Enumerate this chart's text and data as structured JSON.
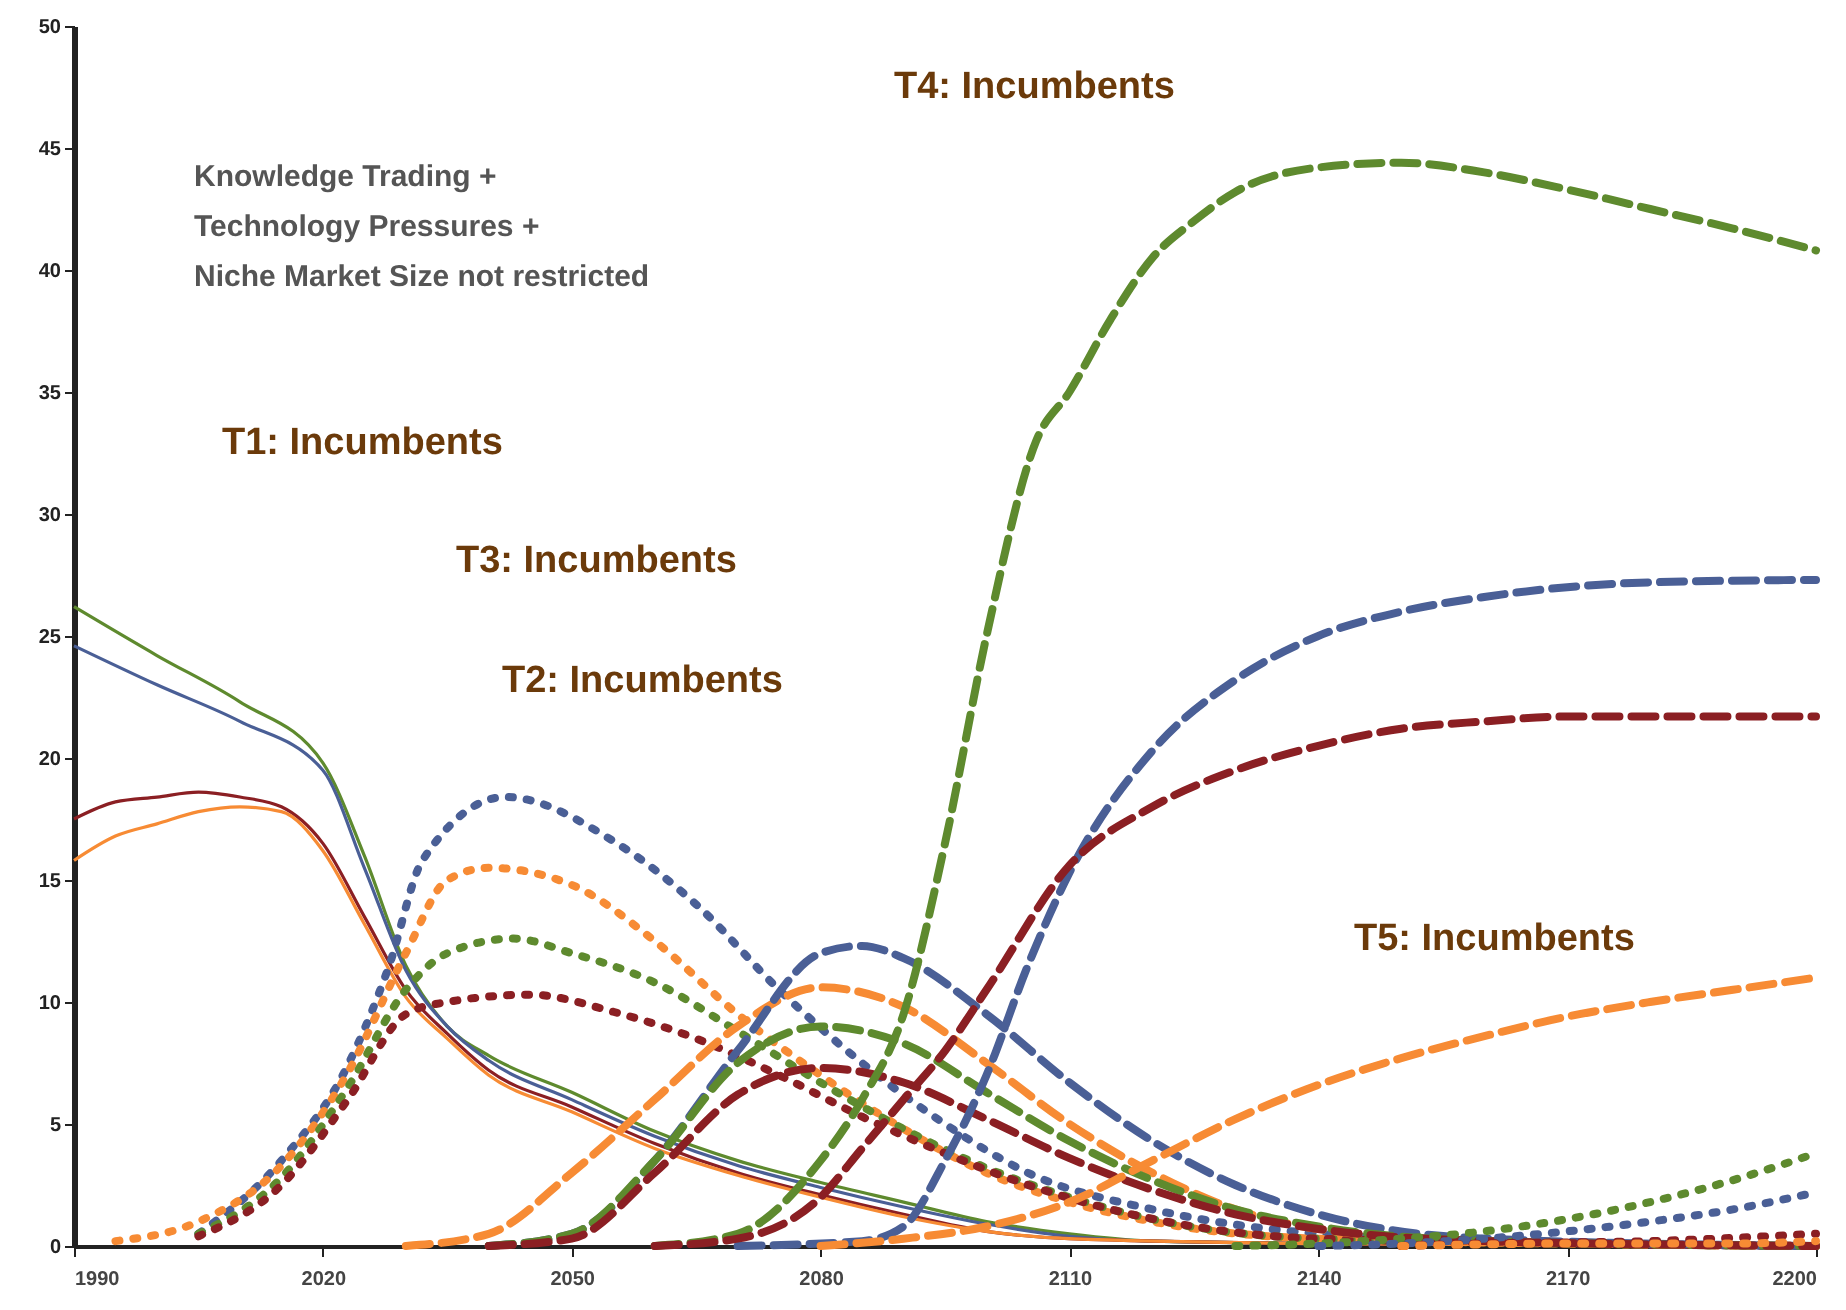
{
  "chart_data": {
    "type": "line",
    "xlim": [
      1990,
      2200
    ],
    "xticks": [
      1990,
      2020,
      2050,
      2080,
      2110,
      2140,
      2170,
      2200
    ],
    "ylim": [
      0,
      50
    ],
    "yticks": [
      0,
      5,
      10,
      15,
      20,
      25,
      30,
      35,
      40,
      45,
      50
    ],
    "grid": false,
    "annotations": [
      "Knowledge Trading +",
      "Technology Pressures +",
      "Niche Market Size not restricted",
      "T1: Incumbents",
      "T3: Incumbents",
      "T2: Incumbents",
      "T4: Incumbents",
      "T5: Incumbents"
    ],
    "series": [
      {
        "color": "#5e8a2e",
        "line_style": "solid",
        "x": [
          1990,
          2000,
          2010,
          2020,
          2025,
          2030,
          2035,
          2040,
          2050,
          2060,
          2070,
          2080,
          2090,
          2100,
          2110,
          2120,
          2140,
          2200
        ],
        "values": [
          26.2,
          24.2,
          22.3,
          19.8,
          16,
          11.5,
          9,
          7.8,
          6.3,
          4.7,
          3.5,
          2.6,
          1.8,
          1.0,
          0.5,
          0.2,
          0.1,
          0
        ]
      },
      {
        "color": "#4a5f96",
        "line_style": "solid",
        "x": [
          1990,
          2000,
          2010,
          2020,
          2025,
          2030,
          2035,
          2040,
          2050,
          2060,
          2070,
          2080,
          2090,
          2100,
          2110,
          2120,
          2140,
          2200
        ],
        "values": [
          24.6,
          23,
          21.5,
          19.5,
          15.5,
          11.3,
          9,
          7.6,
          6,
          4.5,
          3.3,
          2.4,
          1.6,
          0.9,
          0.4,
          0.2,
          0.1,
          0
        ]
      },
      {
        "color": "#8b1f23",
        "line_style": "solid",
        "x": [
          1990,
          1995,
          2000,
          2005,
          2010,
          2015,
          2020,
          2025,
          2030,
          2035,
          2040,
          2050,
          2060,
          2070,
          2080,
          2090,
          2100,
          2110,
          2140,
          2200
        ],
        "values": [
          17.5,
          18.2,
          18.4,
          18.6,
          18.4,
          18,
          16.5,
          13.5,
          10.5,
          8.7,
          7.2,
          5.7,
          4.2,
          3.0,
          2.1,
          1.3,
          0.6,
          0.3,
          0.1,
          0
        ]
      },
      {
        "color": "#f78b34",
        "line_style": "solid",
        "x": [
          1990,
          1995,
          2000,
          2005,
          2010,
          2015,
          2020,
          2025,
          2030,
          2035,
          2040,
          2050,
          2060,
          2070,
          2080,
          2090,
          2100,
          2110,
          2140,
          2200
        ],
        "values": [
          15.8,
          16.8,
          17.3,
          17.8,
          18,
          17.8,
          16.2,
          13.2,
          10.2,
          8.5,
          7,
          5.5,
          4.0,
          2.9,
          2.0,
          1.2,
          0.6,
          0.3,
          0.1,
          0
        ]
      },
      {
        "color": "#4a5f96",
        "line_style": "dotted",
        "x": [
          2005,
          2015,
          2023,
          2028,
          2032,
          2042,
          2055,
          2065,
          2075,
          2085,
          2095,
          2105,
          2120,
          2140,
          2160,
          2200
        ],
        "values": [
          0.5,
          3.5,
          7.4,
          11.5,
          15.8,
          18.4,
          16.6,
          14,
          10.5,
          7.5,
          5,
          3,
          1.5,
          0.5,
          0.2,
          0
        ]
      },
      {
        "color": "#f78b34",
        "line_style": "dotted",
        "x": [
          1995,
          2005,
          2015,
          2023,
          2030,
          2035,
          2040,
          2050,
          2060,
          2070,
          2080,
          2090,
          2100,
          2110,
          2120,
          2140,
          2200
        ],
        "values": [
          0.2,
          1,
          3.3,
          7.1,
          12,
          15,
          15.5,
          14.8,
          12.5,
          9.5,
          7,
          4.8,
          3,
          1.8,
          1,
          0.3,
          0
        ]
      },
      {
        "color": "#5e8a2e",
        "line_style": "dotted",
        "x": [
          2005,
          2015,
          2023,
          2030,
          2035,
          2043,
          2050,
          2060,
          2070,
          2080,
          2090,
          2100,
          2110,
          2120,
          2140,
          2200
        ],
        "values": [
          0.5,
          2.8,
          6.5,
          10.5,
          12,
          12.6,
          12,
          10.8,
          8.8,
          6.7,
          4.8,
          3.2,
          2,
          1.1,
          0.3,
          0
        ]
      },
      {
        "color": "#8b1f23",
        "line_style": "dotted",
        "x": [
          2005,
          2015,
          2023,
          2030,
          2035,
          2045,
          2055,
          2065,
          2075,
          2085,
          2095,
          2105,
          2115,
          2125,
          2140,
          2200
        ],
        "values": [
          0.4,
          2.5,
          6,
          9.5,
          10,
          10.3,
          9.6,
          8.5,
          7,
          5.3,
          3.8,
          2.5,
          1.5,
          0.8,
          0.3,
          0
        ]
      },
      {
        "color": "#f78b34",
        "line_style": "dashed",
        "x": [
          2030,
          2040,
          2050,
          2060,
          2070,
          2080,
          2090,
          2100,
          2110,
          2120,
          2130,
          2140,
          2160,
          2200
        ],
        "values": [
          0,
          0.5,
          3,
          6,
          9,
          10.6,
          9.8,
          7.5,
          5,
          3,
          1.5,
          0.7,
          0.2,
          0
        ]
      },
      {
        "color": "#4a5f96",
        "line_style": "dashed",
        "x": [
          2040,
          2050,
          2060,
          2070,
          2080,
          2085,
          2090,
          2100,
          2110,
          2120,
          2130,
          2140,
          2160,
          2200
        ],
        "values": [
          0,
          0.5,
          3.5,
          8,
          12,
          12.3,
          11.8,
          9.5,
          6.7,
          4.3,
          2.5,
          1.3,
          0.3,
          0
        ]
      },
      {
        "color": "#5e8a2e",
        "line_style": "dashed",
        "x": [
          2040,
          2050,
          2060,
          2070,
          2080,
          2090,
          2100,
          2110,
          2120,
          2130,
          2140,
          2160,
          2200
        ],
        "values": [
          0,
          0.5,
          3.5,
          7.5,
          9,
          8.3,
          6.3,
          4.3,
          2.7,
          1.5,
          0.8,
          0.2,
          0
        ]
      },
      {
        "color": "#8b1f23",
        "line_style": "dashed",
        "x": [
          2040,
          2050,
          2060,
          2070,
          2080,
          2090,
          2100,
          2110,
          2120,
          2130,
          2140,
          2160,
          2200
        ],
        "values": [
          0,
          0.3,
          3,
          6.2,
          7.3,
          6.7,
          5.2,
          3.6,
          2.3,
          1.3,
          0.7,
          0.2,
          0
        ]
      },
      {
        "color": "#5e8a2e",
        "line_style": "dashed",
        "x": [
          2060,
          2070,
          2080,
          2085,
          2090,
          2095,
          2100,
          2106,
          2110,
          2115,
          2120,
          2125,
          2130,
          2140,
          2150,
          2160,
          2170,
          2180,
          2190,
          2200
        ],
        "values": [
          0,
          0.5,
          3.5,
          6,
          9.5,
          16.5,
          25,
          33,
          35,
          38,
          40.5,
          42,
          43.2,
          44.2,
          44.4,
          44,
          43.3,
          42.5,
          41.7,
          40.8
        ]
      },
      {
        "color": "#4a5f96",
        "line_style": "dashed",
        "x": [
          2070,
          2085,
          2090,
          2095,
          2100,
          2105,
          2110,
          2120,
          2130,
          2140,
          2150,
          2160,
          2170,
          2180,
          2200
        ],
        "values": [
          0,
          0.2,
          0.8,
          3.5,
          7,
          11.5,
          15.3,
          20.3,
          23.2,
          25,
          26,
          26.6,
          27,
          27.2,
          27.3
        ]
      },
      {
        "color": "#8b1f23",
        "line_style": "dashed",
        "x": [
          2060,
          2070,
          2080,
          2085,
          2090,
          2095,
          2100,
          2110,
          2120,
          2130,
          2140,
          2150,
          2160,
          2170,
          2200
        ],
        "values": [
          0,
          0.3,
          2,
          4,
          6,
          8,
          10.5,
          15.6,
          18,
          19.5,
          20.5,
          21.2,
          21.5,
          21.7,
          21.7
        ]
      },
      {
        "color": "#f78b34",
        "line_style": "dashed",
        "x": [
          2080,
          2090,
          2100,
          2110,
          2120,
          2130,
          2140,
          2150,
          2160,
          2170,
          2180,
          2190,
          2200
        ],
        "values": [
          0,
          0.3,
          0.8,
          1.8,
          3.5,
          5.2,
          6.6,
          7.7,
          8.6,
          9.4,
          10,
          10.5,
          11
        ]
      },
      {
        "color": "#5e8a2e",
        "line_style": "dotted",
        "x": [
          2130,
          2140,
          2150,
          2160,
          2170,
          2180,
          2190,
          2200
        ],
        "values": [
          0,
          0.1,
          0.3,
          0.6,
          1.1,
          1.8,
          2.7,
          3.8
        ]
      },
      {
        "color": "#4a5f96",
        "line_style": "dotted",
        "x": [
          2140,
          2150,
          2160,
          2170,
          2180,
          2190,
          2200
        ],
        "values": [
          0,
          0.1,
          0.3,
          0.6,
          1,
          1.5,
          2.2
        ]
      },
      {
        "color": "#8b1f23",
        "line_style": "dotted",
        "x": [
          2150,
          2160,
          2180,
          2200
        ],
        "values": [
          0,
          0.1,
          0.2,
          0.5
        ]
      },
      {
        "color": "#f78b34",
        "line_style": "dotted",
        "x": [
          2150,
          2170,
          2190,
          2200
        ],
        "values": [
          0,
          0.1,
          0.1,
          0.2
        ]
      }
    ]
  }
}
